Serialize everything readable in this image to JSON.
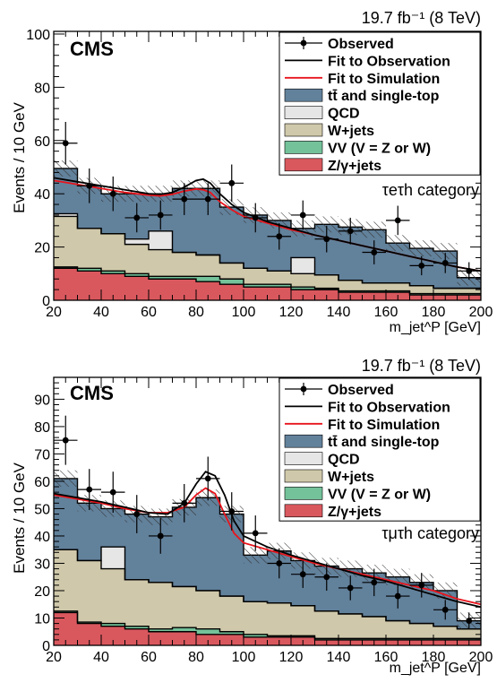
{
  "colors": {
    "ttbar": "#62819b",
    "qcd": "#e6e6e6",
    "wjets": "#cfc8aa",
    "vv": "#74c29a",
    "ztau": "#d9585e",
    "fit_obs": "#000000",
    "fit_sim": "#e8141c",
    "frame": "#000000"
  },
  "chart_data": [
    {
      "type": "area",
      "lumi_label": "19.7 fb⁻¹ (8 TeV)",
      "cms_label": "CMS",
      "category_label": "τeτh category",
      "ylabel": "Events / 10 GeV",
      "xlabel": "m_jet^P [GeV]",
      "xlim": [
        20,
        200
      ],
      "ylim": [
        0,
        101
      ],
      "yticks": [
        0,
        20,
        40,
        60,
        80,
        100
      ],
      "xticks": [
        20,
        40,
        60,
        80,
        100,
        120,
        140,
        160,
        180,
        200
      ],
      "legend": [
        {
          "label": "Observed",
          "style": "marker"
        },
        {
          "label": "Fit to Observation",
          "style": "line-black"
        },
        {
          "label": "Fit to Simulation",
          "style": "line-red"
        },
        {
          "label": "tt̄ and single-top",
          "style": "fill-ttbar"
        },
        {
          "label": "QCD",
          "style": "fill-qcd"
        },
        {
          "label": "W+jets",
          "style": "fill-wjets"
        },
        {
          "label": "VV (V = Z or W)",
          "style": "fill-vv"
        },
        {
          "label": "Z/γ+jets",
          "style": "fill-ztau"
        }
      ],
      "bin_edges": [
        20,
        30,
        40,
        50,
        60,
        70,
        80,
        90,
        100,
        110,
        120,
        130,
        140,
        150,
        160,
        170,
        180,
        190,
        200
      ],
      "stack": {
        "ztau": [
          12,
          11,
          10,
          9,
          8,
          8,
          7,
          6,
          5,
          5,
          4,
          4,
          3,
          3,
          3,
          2,
          2,
          2
        ],
        "vv": [
          0.5,
          1,
          1,
          1,
          1,
          1,
          2,
          2,
          1,
          1,
          1,
          0.5,
          0.5,
          0.5,
          0.5,
          0.5,
          0.5,
          0.5
        ],
        "wjets": [
          19,
          15,
          14,
          11,
          10,
          9,
          8,
          6,
          6,
          5,
          5,
          5,
          4,
          3,
          3,
          3,
          2,
          2
        ],
        "qcd": [
          1,
          0,
          0,
          2,
          7,
          0,
          0,
          0,
          0,
          0,
          6,
          0,
          0,
          0,
          0,
          0,
          0,
          0
        ],
        "ttbar": [
          17,
          16,
          15,
          17,
          14,
          24,
          25,
          21,
          20,
          19,
          11,
          19,
          20,
          20,
          15,
          14,
          14,
          4
        ]
      },
      "uncertainty_band": [
        3,
        3,
        3,
        3,
        3,
        3,
        3,
        3,
        3,
        3,
        3,
        3,
        3,
        3,
        3,
        3,
        3,
        3
      ],
      "observed": {
        "x": [
          25,
          35,
          45,
          55,
          65,
          75,
          85,
          95,
          105,
          115,
          125,
          135,
          145,
          155,
          165,
          175,
          185,
          195
        ],
        "y": [
          59,
          43,
          40,
          31,
          32,
          38,
          38,
          44,
          31,
          24,
          32,
          23,
          26,
          18,
          30,
          13,
          14,
          11
        ],
        "err": [
          8,
          6.5,
          6.5,
          5.5,
          5.5,
          6,
          6,
          7,
          5.5,
          5,
          5.5,
          5,
          5,
          4.5,
          5.5,
          3.6,
          3.8,
          3.3
        ]
      },
      "fit_observation": {
        "x": [
          20,
          30,
          40,
          50,
          60,
          65,
          70,
          75,
          80,
          83,
          86,
          90,
          95,
          100,
          110,
          120,
          130,
          140,
          150,
          160,
          170,
          180,
          190,
          200
        ],
        "y": [
          46,
          44.5,
          43,
          41.5,
          40,
          39.8,
          40.5,
          42.5,
          45,
          45.5,
          44,
          40,
          36,
          33,
          29.5,
          27,
          24.5,
          22.5,
          20.5,
          18.5,
          16.5,
          14.5,
          12.5,
          11
        ]
      },
      "fit_simulation": {
        "x": [
          20,
          30,
          40,
          50,
          60,
          65,
          70,
          75,
          80,
          83,
          86,
          90,
          95,
          100,
          110,
          120,
          130,
          140,
          150,
          160,
          170,
          180,
          190,
          200
        ],
        "y": [
          45,
          43.5,
          42,
          40.5,
          39.5,
          39.2,
          39.8,
          41,
          41.8,
          41.5,
          40.5,
          37,
          34,
          31.5,
          29,
          26.5,
          24.5,
          22.5,
          20.5,
          18.5,
          16.5,
          14.5,
          12.5,
          11
        ]
      }
    },
    {
      "type": "area",
      "lumi_label": "19.7 fb⁻¹ (8 TeV)",
      "cms_label": "CMS",
      "category_label": "τμτh category",
      "ylabel": "Events / 10 GeV",
      "xlabel": "m_jet^P [GeV]",
      "xlim": [
        20,
        200
      ],
      "ylim": [
        0,
        98
      ],
      "yticks": [
        0,
        10,
        20,
        30,
        40,
        50,
        60,
        70,
        80,
        90
      ],
      "xticks": [
        20,
        40,
        60,
        80,
        100,
        120,
        140,
        160,
        180,
        200
      ],
      "legend": [
        {
          "label": "Observed",
          "style": "marker"
        },
        {
          "label": "Fit to Observation",
          "style": "line-black"
        },
        {
          "label": "Fit to Simulation",
          "style": "line-red"
        },
        {
          "label": "tt̄ and single-top",
          "style": "fill-ttbar"
        },
        {
          "label": "QCD",
          "style": "fill-qcd"
        },
        {
          "label": "W+jets",
          "style": "fill-wjets"
        },
        {
          "label": "VV (V = Z or W)",
          "style": "fill-vv"
        },
        {
          "label": "Z/γ+jets",
          "style": "fill-ztau"
        }
      ],
      "bin_edges": [
        20,
        30,
        40,
        50,
        60,
        70,
        80,
        90,
        100,
        110,
        120,
        130,
        140,
        150,
        160,
        170,
        180,
        190,
        200
      ],
      "stack": {
        "ztau": [
          12,
          8,
          7,
          6,
          5,
          5,
          4,
          4,
          3,
          3,
          3,
          2,
          2,
          2,
          2,
          2,
          2,
          2
        ],
        "vv": [
          0.5,
          0.5,
          1,
          1,
          1,
          1.5,
          2,
          1,
          1,
          0.5,
          0.5,
          0.5,
          0.5,
          0.5,
          0.5,
          0.5,
          0.5,
          0.5
        ],
        "wjets": [
          22.5,
          22.5,
          20,
          17,
          17,
          15,
          14,
          13,
          12,
          12,
          11,
          10,
          9,
          8,
          6.5,
          5.5,
          4.5,
          3.5
        ],
        "qcd": [
          0,
          0,
          8,
          0,
          0,
          0,
          0,
          0,
          0,
          0,
          0,
          0,
          0,
          0,
          0,
          0,
          0,
          0
        ],
        "ttbar": [
          26,
          21,
          14,
          24,
          24,
          29,
          34,
          30,
          17,
          19,
          16.5,
          16.5,
          16.5,
          16,
          16,
          15,
          13,
          3
        ]
      },
      "uncertainty_band": [
        3,
        3,
        3,
        3,
        3,
        3,
        3,
        3,
        3,
        3,
        3,
        3,
        3,
        3,
        3,
        3,
        3,
        3
      ],
      "observed": {
        "x": [
          25,
          35,
          45,
          55,
          65,
          75,
          85,
          95,
          105,
          115,
          125,
          135,
          145,
          155,
          165,
          175,
          185,
          195
        ],
        "y": [
          75,
          57,
          56,
          48,
          40,
          52,
          61,
          49,
          41,
          30,
          26,
          25,
          21,
          23,
          18,
          22,
          13,
          9
        ],
        "err": [
          9,
          7.5,
          7.5,
          7,
          6.5,
          7,
          8,
          7,
          6.5,
          5.5,
          5,
          5,
          4.5,
          5,
          4.5,
          4.5,
          3.6,
          3
        ]
      },
      "fit_observation": {
        "x": [
          20,
          30,
          40,
          50,
          60,
          68,
          75,
          80,
          84,
          88,
          92,
          96,
          100,
          110,
          120,
          130,
          140,
          150,
          160,
          170,
          180,
          190,
          200
        ],
        "y": [
          55.5,
          54,
          52.5,
          50.5,
          48.5,
          48,
          52,
          59,
          63.5,
          62,
          55,
          45.5,
          40,
          36,
          33,
          30.5,
          28,
          25.5,
          23.5,
          21,
          18.5,
          16,
          14
        ]
      },
      "fit_simulation": {
        "x": [
          20,
          30,
          40,
          50,
          60,
          68,
          75,
          80,
          84,
          88,
          92,
          96,
          100,
          110,
          120,
          130,
          140,
          150,
          160,
          170,
          180,
          190,
          200
        ],
        "y": [
          55,
          53.5,
          52,
          50,
          48.5,
          48.5,
          50.5,
          55,
          57.5,
          55.5,
          48,
          41,
          37.5,
          35,
          32.5,
          30,
          28,
          26,
          24,
          22,
          20,
          17,
          15
        ]
      }
    }
  ]
}
